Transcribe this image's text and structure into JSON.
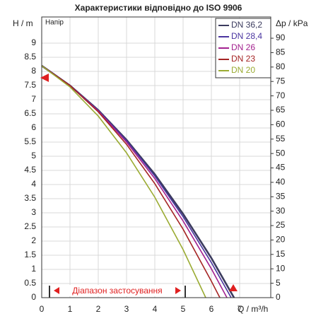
{
  "chart_data": {
    "type": "line",
    "title": "Характеристики відповідно до ISO 9906",
    "subtitle": "Напір",
    "y_label": "H / m",
    "y2_label": "Δp / kPa",
    "x_label": "Q / m³/h",
    "annotation": "Діапазон застосування",
    "xlim": [
      0,
      8.1
    ],
    "xticks": [
      0,
      1,
      2,
      3,
      4,
      5,
      6,
      7
    ],
    "ylim": [
      0,
      9.5
    ],
    "yticks": [
      0,
      0.5,
      1,
      1.5,
      2,
      2.5,
      3,
      3.5,
      4,
      4.5,
      5,
      5.5,
      6,
      6.5,
      7,
      7.5,
      8,
      8.5,
      9
    ],
    "y2lim": [
      0,
      93.2
    ],
    "y2ticks": [
      0,
      5,
      10,
      15,
      20,
      25,
      30,
      35,
      40,
      45,
      50,
      55,
      60,
      65,
      70,
      75,
      80,
      85,
      90
    ],
    "grid": true,
    "legend": "upper right",
    "series": [
      {
        "name": "DN 36,2",
        "color": "#3b3b5e",
        "x": [
          0,
          1,
          2,
          3,
          4,
          5,
          6,
          6.8
        ],
        "values": [
          8.2,
          7.5,
          6.63,
          5.58,
          4.36,
          2.96,
          1.4,
          0
        ]
      },
      {
        "name": "DN 28,4",
        "color": "#4a35a0",
        "x": [
          0,
          1,
          2,
          3,
          4,
          5,
          6,
          6.7
        ],
        "values": [
          8.2,
          7.5,
          6.62,
          5.55,
          4.3,
          2.86,
          1.24,
          0
        ]
      },
      {
        "name": "DN 26",
        "color": "#a3218f",
        "x": [
          0,
          1,
          2,
          3,
          4,
          5,
          6,
          6.55
        ],
        "values": [
          8.2,
          7.5,
          6.6,
          5.5,
          4.21,
          2.71,
          1.02,
          0
        ]
      },
      {
        "name": "DN 23",
        "color": "#a52424",
        "x": [
          0,
          1,
          2,
          3,
          4,
          5,
          6,
          6.3
        ],
        "values": [
          8.2,
          7.5,
          6.57,
          5.42,
          4.03,
          2.42,
          0.58,
          0
        ]
      },
      {
        "name": "DN 20",
        "color": "#9aab32",
        "x": [
          0,
          1,
          2,
          3,
          4,
          5,
          5.8
        ],
        "values": [
          8.2,
          7.45,
          6.42,
          5.12,
          3.55,
          1.7,
          0
        ]
      }
    ]
  }
}
